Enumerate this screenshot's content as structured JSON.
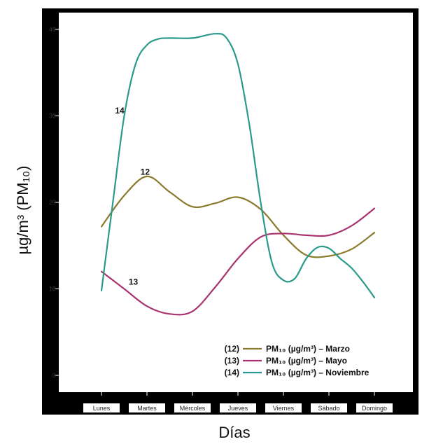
{
  "chart_data": {
    "type": "line",
    "categories": [
      "Lunes",
      "Martes",
      "Mércoles",
      "Jueves",
      "Viernes",
      "Sábado",
      "Domingo"
    ],
    "ylabel": "µg/m³ (PM₁₀)",
    "xlabel": "Días",
    "ylim": [
      -3,
      43
    ],
    "yticks": [
      0,
      10,
      20,
      30,
      40
    ],
    "grid": false,
    "legend_position": "bottom-right",
    "series": [
      {
        "id": "12",
        "name": "PM₁₀ (µg/m³) – Marzo",
        "legend_prefix": "(12)",
        "label": "12",
        "color": "#8a7a2e",
        "x": [
          0,
          0.5,
          1,
          1.5,
          2,
          2.5,
          3,
          3.5,
          4,
          4.5,
          5,
          5.5,
          6
        ],
        "values": [
          17.2,
          20.8,
          23.0,
          21.2,
          19.5,
          19.9,
          20.6,
          19.2,
          16.2,
          13.9,
          13.8,
          14.6,
          16.5
        ]
      },
      {
        "id": "13",
        "name": "PM₁₀ (µg/m³) – Mayo",
        "legend_prefix": "(13)",
        "label": "13",
        "color": "#a8336e",
        "x": [
          0,
          0.5,
          1,
          1.5,
          2,
          2.5,
          3,
          3.5,
          4,
          4.5,
          5,
          5.5,
          6
        ],
        "values": [
          12.0,
          10.0,
          8.0,
          7.1,
          7.4,
          10.2,
          13.5,
          16.0,
          16.4,
          16.2,
          16.2,
          17.3,
          19.3
        ]
      },
      {
        "id": "14",
        "name": "PM₁₀ (µg/m³) – Noviembre",
        "legend_prefix": "(14)",
        "label": "14",
        "color": "#2a9a8c",
        "x": [
          0,
          0.25,
          0.5,
          0.75,
          1,
          1.25,
          1.5,
          2,
          2.5,
          2.75,
          3,
          3.25,
          3.5,
          3.75,
          4,
          4.25,
          4.5,
          4.75,
          5,
          5.25,
          5.5,
          5.75,
          6
        ],
        "values": [
          9.8,
          20.0,
          30.0,
          36.0,
          38.2,
          38.9,
          39.0,
          39.0,
          39.5,
          39.0,
          36.0,
          29.0,
          20.0,
          13.0,
          11.0,
          11.2,
          13.5,
          14.8,
          14.7,
          13.5,
          12.4,
          10.8,
          9.0
        ]
      }
    ]
  }
}
